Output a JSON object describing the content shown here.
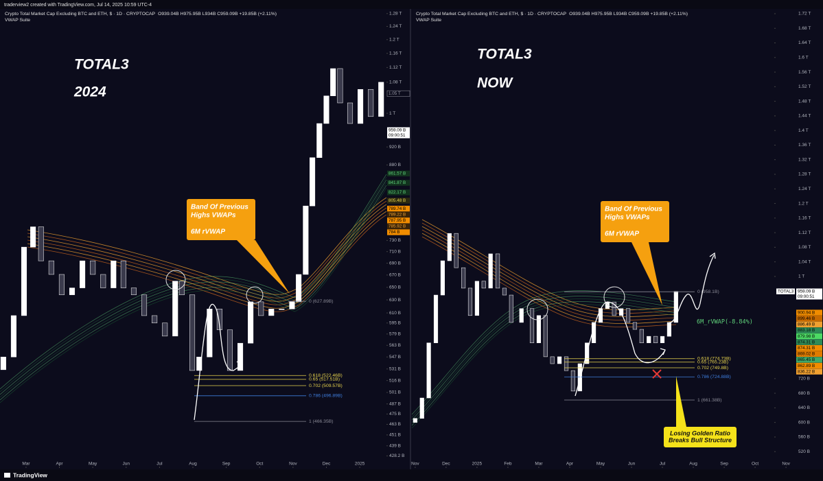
{
  "header": "traderview2 created with TradingView.com, Jul 14, 2025 10:59 UTC-4",
  "footer": "TradingView",
  "chart_data": [
    {
      "type": "candlestick",
      "title": "Crypto Total Market Cap Excluding BTC and ETH, $ · 1D · CRYPTOCAP",
      "subtitle": "O939.04B H975.95B L934B C959.09B +19.85B (+2.11%)",
      "indicator": "VWAP Suite",
      "annotations": [
        "TOTAL3",
        "2024"
      ],
      "callout": [
        "Band Of Previous",
        "Highs VWAPs",
        "6M rVWAP"
      ],
      "x": [
        2.32,
        2.63,
        2.94,
        3.21,
        3.45,
        3.76,
        4.07,
        4.38,
        4.69,
        5.0,
        5.31,
        5.62,
        5.92,
        6.23,
        6.54,
        6.85,
        7.16,
        7.47,
        7.67,
        7.98,
        8.19,
        8.5,
        8.8,
        9.11,
        9.42,
        9.73,
        10.04,
        10.35,
        10.66,
        10.97,
        11.17,
        11.38,
        11.58,
        11.79,
        12.0,
        12.2,
        12.41,
        12.71,
        13.02,
        13.33,
        13.64
      ],
      "open": [
        530,
        547,
        606,
        718,
        755,
        694,
        671,
        638,
        649,
        694,
        671,
        649,
        694,
        649,
        638,
        606,
        595,
        576,
        660,
        638,
        529,
        547,
        616,
        585,
        529,
        566,
        627,
        606,
        616,
        616,
        627,
        671,
        795,
        896,
        975,
        1044,
        1117,
        1026,
        975,
        1061,
        992
      ],
      "close": [
        547,
        606,
        718,
        755,
        694,
        671,
        638,
        649,
        694,
        671,
        649,
        694,
        649,
        638,
        606,
        595,
        576,
        660,
        638,
        529,
        547,
        616,
        585,
        529,
        566,
        627,
        606,
        616,
        616,
        627,
        671,
        795,
        896,
        975,
        1044,
        1117,
        1026,
        975,
        1061,
        992,
        1080
      ],
      "up_color": "#ffffff",
      "down_color": "#3a3a4c",
      "xlim": [
        2.22,
        13.8
      ],
      "xticks": [
        {
          "value": 3,
          "label": "Mar"
        },
        {
          "value": 4,
          "label": "Apr"
        },
        {
          "value": 5,
          "label": "May"
        },
        {
          "value": 6,
          "label": "Jun"
        },
        {
          "value": 7,
          "label": "Jul"
        },
        {
          "value": 8,
          "label": "Aug"
        },
        {
          "value": 9,
          "label": "Sep"
        },
        {
          "value": 10,
          "label": "Oct"
        },
        {
          "value": 11,
          "label": "Nov"
        },
        {
          "value": 12,
          "label": "Dec"
        },
        {
          "value": 13,
          "label": "2025"
        }
      ],
      "ylim": [
        417,
        1297
      ],
      "log_scale": true,
      "grid": false,
      "yticks": [
        {
          "value": 1280,
          "label": "1.28 T"
        },
        {
          "value": 1240,
          "label": "1.24 T"
        },
        {
          "value": 1200,
          "label": "1.2 T"
        },
        {
          "value": 1160,
          "label": "1.16 T"
        },
        {
          "value": 1120,
          "label": "1.12 T"
        },
        {
          "value": 1080,
          "label": "1.08 T"
        },
        {
          "value": 1000,
          "label": "1 T"
        },
        {
          "value": 920,
          "label": "920 B"
        },
        {
          "value": 880,
          "label": "880 B"
        },
        {
          "value": 730,
          "label": "730 B"
        },
        {
          "value": 710,
          "label": "710 B"
        },
        {
          "value": 690,
          "label": "690 B"
        },
        {
          "value": 670,
          "label": "670 B"
        },
        {
          "value": 650,
          "label": "650 B"
        },
        {
          "value": 630,
          "label": "630 B"
        },
        {
          "value": 610,
          "label": "610 B"
        },
        {
          "value": 595,
          "label": "595 B"
        },
        {
          "value": 579,
          "label": "579 B"
        },
        {
          "value": 563,
          "label": "563 B"
        },
        {
          "value": 547,
          "label": "547 B"
        },
        {
          "value": 531,
          "label": "531 B"
        },
        {
          "value": 516,
          "label": "516 B"
        },
        {
          "value": 501,
          "label": "501 B"
        },
        {
          "value": 487,
          "label": "487 B"
        },
        {
          "value": 475,
          "label": "475 B"
        },
        {
          "value": 463,
          "label": "463 B"
        },
        {
          "value": 451,
          "label": "451 B"
        },
        {
          "value": 439,
          "label": "439 B"
        },
        {
          "value": 428.2,
          "label": "428.2 B"
        }
      ],
      "fib_levels": [
        {
          "value": 627.89,
          "label": "0 (627.89B)",
          "color": "#8a8a96"
        },
        {
          "value": 522.46,
          "label": "0.618 (522.46B)",
          "color": "#e8d44d"
        },
        {
          "value": 517.51,
          "label": "0.65 (517.51B)",
          "color": "#e8d44d"
        },
        {
          "value": 509.57,
          "label": "0.702 (509.57B)",
          "color": "#e8d44d"
        },
        {
          "value": 496.89,
          "label": "0.786 (496.89B)",
          "color": "#3f7fe0"
        },
        {
          "value": 466.35,
          "label": "1 (466.35B)",
          "color": "#8a8a96"
        }
      ],
      "price_tags": [
        {
          "value": 1050,
          "label": "1.05 T",
          "color": "#0c0c1c",
          "text_color": "#9a9aa6"
        },
        {
          "value": 959.09,
          "label": "959.09 B",
          "time": "09:00:51",
          "color": "#ffffff",
          "text_color": "#000000"
        },
        {
          "value": 861.57,
          "label": "861.57 B",
          "color": "#12321e",
          "text_color": "#5fd17a"
        },
        {
          "value": 841.87,
          "label": "841.87 B",
          "color": "#12321e",
          "text_color": "#5fd17a"
        },
        {
          "value": 822.17,
          "label": "822.17 B",
          "color": "#12321e",
          "text_color": "#5fd17a"
        },
        {
          "value": 805.48,
          "label": "805.48 B",
          "color": "#2d2a10",
          "text_color": "#e8d44d"
        },
        {
          "value": 789.74,
          "label": "789.74 B",
          "color": "#f08c00",
          "text_color": "#000000"
        },
        {
          "value": 789.22,
          "label": "789.22 B",
          "color": "#3a2408",
          "text_color": "#f0a030"
        },
        {
          "value": 787.95,
          "label": "787.95 B",
          "color": "#f08c00",
          "text_color": "#000000"
        },
        {
          "value": 785.92,
          "label": "785.92 B",
          "color": "#3a2408",
          "text_color": "#f0a030"
        },
        {
          "value": 784,
          "label": "784 B",
          "color": "#f08c00",
          "text_color": "#000000"
        }
      ]
    },
    {
      "type": "candlestick",
      "title": "Crypto Total Market Cap Excluding BTC and ETH, $ · 1D · CRYPTOCAP",
      "subtitle": "O939.04B H975.95B L934B C959.09B +19.85B (+2.11%)",
      "indicator": "VWAP Suite",
      "annotations": [
        "TOTAL3",
        "NOW"
      ],
      "callout": [
        "Band Of Previous",
        "Highs VWAPs",
        "6M rVWAP"
      ],
      "warning": [
        "Losing Golden Ratio",
        "Breaks Bull Structure"
      ],
      "note": "6M_rVWAP(-8.84%)",
      "symbol_tag": "TOTAL3",
      "x": [
        11.0,
        11.22,
        11.44,
        11.67,
        11.89,
        12.11,
        12.33,
        12.56,
        12.78,
        13.0,
        13.22,
        13.44,
        13.67,
        13.89,
        14.11,
        14.44,
        14.78,
        15.0,
        15.22,
        15.44,
        15.67,
        15.89,
        16.11,
        16.33,
        16.56,
        16.78,
        17.0,
        17.22,
        17.44,
        17.67,
        17.89,
        18.11,
        18.33,
        18.56,
        18.78,
        19.0,
        19.22,
        19.44
      ],
      "open": [
        600,
        611,
        667,
        818,
        949,
        1043,
        1118,
        1024,
        968,
        893,
        987,
        968,
        1062,
        968,
        949,
        874,
        912,
        818,
        893,
        780,
        761,
        780,
        742,
        686,
        761,
        818,
        874,
        912,
        930,
        893,
        912,
        874,
        855,
        818,
        836,
        818,
        836,
        874
      ],
      "close": [
        611,
        667,
        818,
        949,
        1043,
        1118,
        1024,
        968,
        893,
        987,
        968,
        1062,
        968,
        949,
        874,
        912,
        818,
        893,
        780,
        761,
        780,
        742,
        686,
        761,
        818,
        874,
        912,
        930,
        893,
        912,
        874,
        855,
        818,
        836,
        818,
        836,
        874,
        959
      ],
      "up_color": "#ffffff",
      "down_color": "#3a3a4c",
      "xlim": [
        10.87,
        22.62
      ],
      "xticks": [
        {
          "value": 11,
          "label": "Nov"
        },
        {
          "value": 12,
          "label": "Dec"
        },
        {
          "value": 13,
          "label": "2025"
        },
        {
          "value": 14,
          "label": "Feb"
        },
        {
          "value": 15,
          "label": "Mar"
        },
        {
          "value": 16,
          "label": "Apr"
        },
        {
          "value": 17,
          "label": "May"
        },
        {
          "value": 18,
          "label": "Jun"
        },
        {
          "value": 19,
          "label": "Jul"
        },
        {
          "value": 20,
          "label": "Aug"
        },
        {
          "value": 21,
          "label": "Sep"
        },
        {
          "value": 22,
          "label": "Oct"
        },
        {
          "value": 23,
          "label": "Nov"
        }
      ],
      "ylim": [
        479,
        1735
      ],
      "log_scale": false,
      "grid": false,
      "yticks": [
        {
          "value": 1720,
          "label": "1.72 T"
        },
        {
          "value": 1680,
          "label": "1.68 T"
        },
        {
          "value": 1640,
          "label": "1.64 T"
        },
        {
          "value": 1600,
          "label": "1.6 T"
        },
        {
          "value": 1560,
          "label": "1.56 T"
        },
        {
          "value": 1520,
          "label": "1.52 T"
        },
        {
          "value": 1480,
          "label": "1.48 T"
        },
        {
          "value": 1440,
          "label": "1.44 T"
        },
        {
          "value": 1400,
          "label": "1.4 T"
        },
        {
          "value": 1360,
          "label": "1.36 T"
        },
        {
          "value": 1320,
          "label": "1.32 T"
        },
        {
          "value": 1280,
          "label": "1.28 T"
        },
        {
          "value": 1240,
          "label": "1.24 T"
        },
        {
          "value": 1200,
          "label": "1.2 T"
        },
        {
          "value": 1160,
          "label": "1.16 T"
        },
        {
          "value": 1120,
          "label": "1.12 T"
        },
        {
          "value": 1080,
          "label": "1.08 T"
        },
        {
          "value": 1040,
          "label": "1.04 T"
        },
        {
          "value": 1000,
          "label": "1 T"
        },
        {
          "value": 720,
          "label": "720 B"
        },
        {
          "value": 680,
          "label": "680 B"
        },
        {
          "value": 640,
          "label": "640 B"
        },
        {
          "value": 600,
          "label": "600 B"
        },
        {
          "value": 560,
          "label": "560 B"
        },
        {
          "value": 520,
          "label": "520 B"
        }
      ],
      "fib_levels": [
        {
          "value": 958.1,
          "label": "0 (958.1B)",
          "color": "#8a8a96"
        },
        {
          "value": 774.73,
          "label": "0.618 (774.73B)",
          "color": "#e8d44d"
        },
        {
          "value": 765.23,
          "label": "0.65 (765.23B)",
          "color": "#e8d44d"
        },
        {
          "value": 749.8,
          "label": "0.702 (749.8B)",
          "color": "#e8d44d"
        },
        {
          "value": 724.88,
          "label": "0.786 (724.88B)",
          "color": "#3f7fe0"
        },
        {
          "value": 661.38,
          "label": "1 (661.38B)",
          "color": "#8a8a96"
        }
      ],
      "price_tags": [
        {
          "value": 959.09,
          "label": "959.09 B",
          "time": "09:00:51",
          "color": "#ffffff",
          "text_color": "#000000"
        },
        {
          "value": 900.94,
          "label": "900.94 B",
          "color": "#f08c00",
          "text_color": "#000000"
        },
        {
          "value": 899.46,
          "label": "899.46 B",
          "color": "#c86a00",
          "text_color": "#000000"
        },
        {
          "value": 886.49,
          "label": "886.49 B",
          "color": "#f0a030",
          "text_color": "#000000"
        },
        {
          "value": 883.18,
          "label": "883.18 B",
          "color": "#2e8b57",
          "text_color": "#000000"
        },
        {
          "value": 879.98,
          "label": "879.98 B",
          "color": "#4cd964",
          "text_color": "#000000"
        },
        {
          "value": 874.31,
          "label": "874.31 B",
          "color": "#2e8b57",
          "text_color": "#000000"
        },
        {
          "value": 874.31,
          "label": "874.31 B",
          "color": "#f08c00",
          "text_color": "#000000"
        },
        {
          "value": 869.02,
          "label": "869.02 B",
          "color": "#e07b00",
          "text_color": "#000000"
        },
        {
          "value": 865.45,
          "label": "865.45 B",
          "color": "#3ea86a",
          "text_color": "#000000"
        },
        {
          "value": 862.89,
          "label": "862.89 B",
          "color": "#f08c00",
          "text_color": "#000000"
        },
        {
          "value": 836.22,
          "label": "836.22 B",
          "color": "#f0a030",
          "text_color": "#000000"
        }
      ]
    }
  ]
}
